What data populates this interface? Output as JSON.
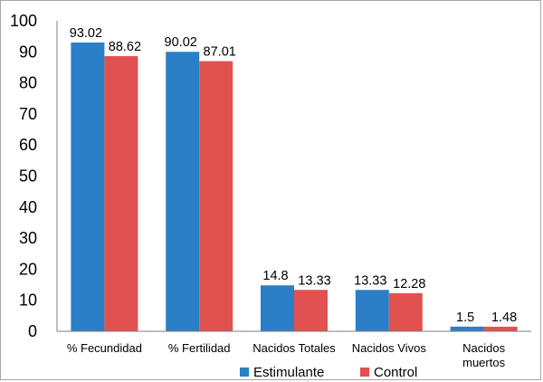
{
  "chart_data": {
    "type": "bar",
    "categories": [
      [
        "% Fecundidad"
      ],
      [
        "% Fertilidad"
      ],
      [
        "Nacidos Totales"
      ],
      [
        "Nacidos Vivos"
      ],
      [
        "Nacidos",
        "muertos"
      ]
    ],
    "series": [
      {
        "name": "Estimulante",
        "color": "#2a7fc6",
        "values": [
          93.02,
          90.02,
          14.8,
          13.33,
          1.5
        ],
        "labels": [
          "93.02",
          "90.02",
          "14.8",
          "13.33",
          "1.5"
        ]
      },
      {
        "name": "Control",
        "color": "#e0514f",
        "values": [
          88.62,
          87.01,
          13.33,
          12.28,
          1.48
        ],
        "labels": [
          "88.62",
          "87.01",
          "13.33",
          "12.28",
          "1.48"
        ]
      }
    ],
    "yticks": [
      "0",
      "10",
      "20",
      "30",
      "40",
      "50",
      "60",
      "70",
      "80",
      "90",
      "100"
    ],
    "ylim": [
      0,
      100
    ],
    "grid": false,
    "legend_position": "bottom"
  }
}
